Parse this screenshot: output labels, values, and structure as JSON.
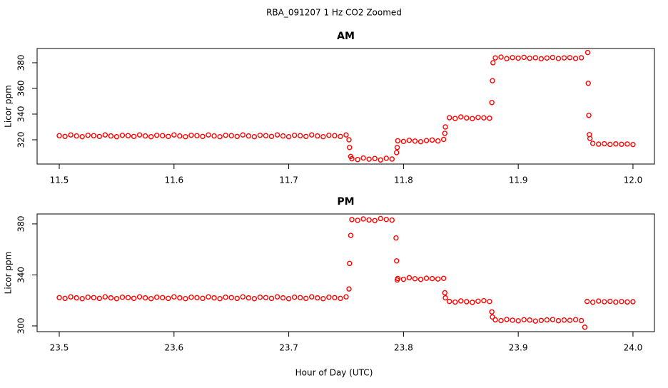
{
  "title": "RBA_091207  1 Hz CO2 Zoomed",
  "x_label": "Hour of Day (UTC)",
  "chart_data": [
    {
      "type": "scatter",
      "title": "AM",
      "y_label": "Licor ppm",
      "color": "#ff0000",
      "xlim": [
        11.4807,
        12.0187
      ],
      "ylim": [
        301.1,
        391.1
      ],
      "xticks": [
        11.5,
        11.6,
        11.7,
        11.8,
        11.9,
        {
          "value": 12,
          "label": "12.0"
        }
      ],
      "yticks": [
        320,
        340,
        360,
        380
      ],
      "x": [
        11.5,
        11.505,
        11.51,
        11.515,
        11.52,
        11.525,
        11.53,
        11.535,
        11.54,
        11.545,
        11.55,
        11.555,
        11.56,
        11.565,
        11.57,
        11.575,
        11.58,
        11.585,
        11.59,
        11.595,
        11.6,
        11.605,
        11.61,
        11.615,
        11.62,
        11.625,
        11.63,
        11.635,
        11.64,
        11.645,
        11.65,
        11.655,
        11.66,
        11.665,
        11.67,
        11.675,
        11.68,
        11.685,
        11.69,
        11.695,
        11.7,
        11.705,
        11.71,
        11.715,
        11.72,
        11.725,
        11.73,
        11.735,
        11.74,
        11.745,
        11.75,
        11.7525,
        11.753,
        11.754,
        11.755,
        11.76,
        11.765,
        11.77,
        11.775,
        11.78,
        11.785,
        11.79,
        11.794,
        11.7945,
        11.795,
        11.8,
        11.805,
        11.81,
        11.815,
        11.82,
        11.825,
        11.83,
        11.835,
        11.836,
        11.8365,
        11.84,
        11.845,
        11.85,
        11.855,
        11.86,
        11.865,
        11.87,
        11.875,
        11.877,
        11.8775,
        11.878,
        11.88,
        11.885,
        11.89,
        11.895,
        11.9,
        11.905,
        11.91,
        11.915,
        11.92,
        11.925,
        11.93,
        11.935,
        11.94,
        11.945,
        11.95,
        11.955,
        11.9605,
        11.961,
        11.9615,
        11.962,
        11.9625,
        11.965,
        11.97,
        11.975,
        11.98,
        11.985,
        11.99,
        11.995,
        12.0
      ],
      "values": [
        323.2,
        322.6,
        323.8,
        323.0,
        322.4,
        323.5,
        323.2,
        322.6,
        323.8,
        323.0,
        322.4,
        323.5,
        323.2,
        322.6,
        323.8,
        323.0,
        322.4,
        323.5,
        323.2,
        322.6,
        323.8,
        323.0,
        322.4,
        323.5,
        323.2,
        322.6,
        323.8,
        323.0,
        322.4,
        323.5,
        323.2,
        322.6,
        323.8,
        323.0,
        322.4,
        323.5,
        323.2,
        322.6,
        323.8,
        323.0,
        322.4,
        323.5,
        323.2,
        322.6,
        323.8,
        323.0,
        322.4,
        323.5,
        323.2,
        322.6,
        323.8,
        320,
        314,
        307,
        305.2,
        304.6,
        305.8,
        304.9,
        305.4,
        304.3,
        305.6,
        305.0,
        310,
        314,
        319.2,
        318.7,
        319.6,
        319.0,
        318.5,
        319.4,
        319.8,
        319.1,
        320.3,
        325,
        330,
        337.2,
        336.6,
        337.8,
        337.0,
        336.5,
        337.4,
        337.1,
        336.8,
        349,
        366,
        380,
        383.8,
        384.4,
        383.2,
        384.0,
        383.6,
        384.2,
        383.5,
        383.9,
        383.1,
        383.7,
        384.1,
        383.3,
        383.8,
        384.0,
        383.4,
        383.9,
        388,
        364,
        339,
        324,
        321,
        317.2,
        316.6,
        316.9,
        316.4,
        316.8,
        316.5,
        316.7,
        316.3
      ]
    },
    {
      "type": "scatter",
      "title": "PM",
      "y_label": "Licor ppm",
      "color": "#ff0000",
      "xlim": [
        23.4807,
        24.0187
      ],
      "ylim": [
        295.5,
        387.8
      ],
      "xticks": [
        23.5,
        23.6,
        23.7,
        23.8,
        23.9,
        {
          "value": 24,
          "label": "24.0"
        }
      ],
      "yticks": [
        300,
        340,
        380
      ],
      "x": [
        23.5,
        23.505,
        23.51,
        23.515,
        23.52,
        23.525,
        23.53,
        23.535,
        23.54,
        23.545,
        23.55,
        23.555,
        23.56,
        23.565,
        23.57,
        23.575,
        23.58,
        23.585,
        23.59,
        23.595,
        23.6,
        23.605,
        23.61,
        23.615,
        23.62,
        23.625,
        23.63,
        23.635,
        23.64,
        23.645,
        23.65,
        23.655,
        23.66,
        23.665,
        23.67,
        23.675,
        23.68,
        23.685,
        23.69,
        23.695,
        23.7,
        23.705,
        23.71,
        23.715,
        23.72,
        23.725,
        23.73,
        23.735,
        23.74,
        23.745,
        23.75,
        23.7525,
        23.753,
        23.754,
        23.755,
        23.76,
        23.765,
        23.77,
        23.775,
        23.78,
        23.785,
        23.79,
        23.7935,
        23.794,
        23.7945,
        23.795,
        23.8,
        23.805,
        23.81,
        23.815,
        23.82,
        23.825,
        23.83,
        23.835,
        23.836,
        23.8365,
        23.84,
        23.845,
        23.85,
        23.855,
        23.86,
        23.865,
        23.87,
        23.875,
        23.877,
        23.8775,
        23.88,
        23.885,
        23.89,
        23.895,
        23.9,
        23.905,
        23.91,
        23.915,
        23.92,
        23.925,
        23.93,
        23.935,
        23.94,
        23.945,
        23.95,
        23.955,
        23.958,
        23.96,
        23.965,
        23.97,
        23.975,
        23.98,
        23.985,
        23.99,
        23.995,
        24.0
      ],
      "values": [
        322.2,
        321.6,
        322.8,
        322.0,
        321.4,
        322.5,
        322.2,
        321.6,
        322.8,
        322.0,
        321.4,
        322.5,
        322.2,
        321.6,
        322.8,
        322.0,
        321.4,
        322.5,
        322.2,
        321.6,
        322.8,
        322.0,
        321.4,
        322.5,
        322.2,
        321.6,
        322.8,
        322.0,
        321.4,
        322.5,
        322.2,
        321.6,
        322.8,
        322.0,
        321.4,
        322.5,
        322.2,
        321.6,
        322.8,
        322.0,
        321.4,
        322.5,
        322.2,
        321.6,
        322.8,
        322.0,
        321.4,
        322.5,
        322.2,
        321.6,
        322.8,
        329,
        349,
        371,
        383.4,
        382.8,
        383.9,
        383.1,
        382.6,
        384.2,
        383.5,
        383.0,
        369,
        351,
        336,
        337.2,
        336.6,
        337.8,
        337.0,
        336.5,
        337.4,
        337.1,
        336.8,
        337.3,
        326,
        322,
        319.2,
        318.7,
        319.6,
        319.0,
        318.5,
        319.4,
        319.8,
        319.1,
        311,
        307,
        304.8,
        304.2,
        305.1,
        304.5,
        304.0,
        304.9,
        304.6,
        303.8,
        304.3,
        304.7,
        305.0,
        304.1,
        304.6,
        304.4,
        304.9,
        304.2,
        299,
        319.2,
        318.6,
        319.5,
        318.9,
        319.3,
        318.7,
        319.1,
        318.8,
        319.0
      ]
    }
  ]
}
